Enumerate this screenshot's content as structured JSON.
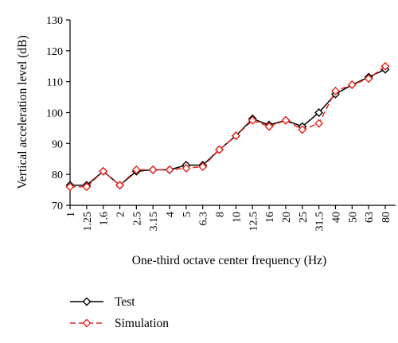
{
  "chart_data": {
    "type": "line",
    "title": "",
    "xlabel": "One-third octave center frequency (Hz)",
    "ylabel": "Vertical acceleration level (dB)",
    "ylim": [
      70,
      130
    ],
    "yticks": [
      70,
      80,
      90,
      100,
      110,
      120,
      130
    ],
    "categories": [
      "1",
      "1.25",
      "1.6",
      "2",
      "2.5",
      "3.15",
      "4",
      "5",
      "6.3",
      "8",
      "10",
      "12.5",
      "16",
      "20",
      "25",
      "31.5",
      "40",
      "50",
      "63",
      "80"
    ],
    "grid": false,
    "legend_position": "bottom-left",
    "series": [
      {
        "name": "Test",
        "color": "#000000",
        "marker": "diamond",
        "line_style": "solid",
        "values": [
          76.5,
          76.5,
          81,
          76.5,
          81,
          81.5,
          81.5,
          83,
          83,
          88,
          92.5,
          98,
          96,
          97.5,
          95.5,
          100,
          106,
          109,
          111.5,
          114
        ]
      },
      {
        "name": "Simulation",
        "color": "#e8231a",
        "marker": "diamond",
        "line_style": "dashed",
        "values": [
          76,
          76,
          81,
          76.5,
          81.5,
          81.5,
          81.5,
          82,
          82.5,
          88,
          92.5,
          97.5,
          95.5,
          97.5,
          94.5,
          96.5,
          107,
          109,
          111,
          115
        ]
      }
    ]
  }
}
